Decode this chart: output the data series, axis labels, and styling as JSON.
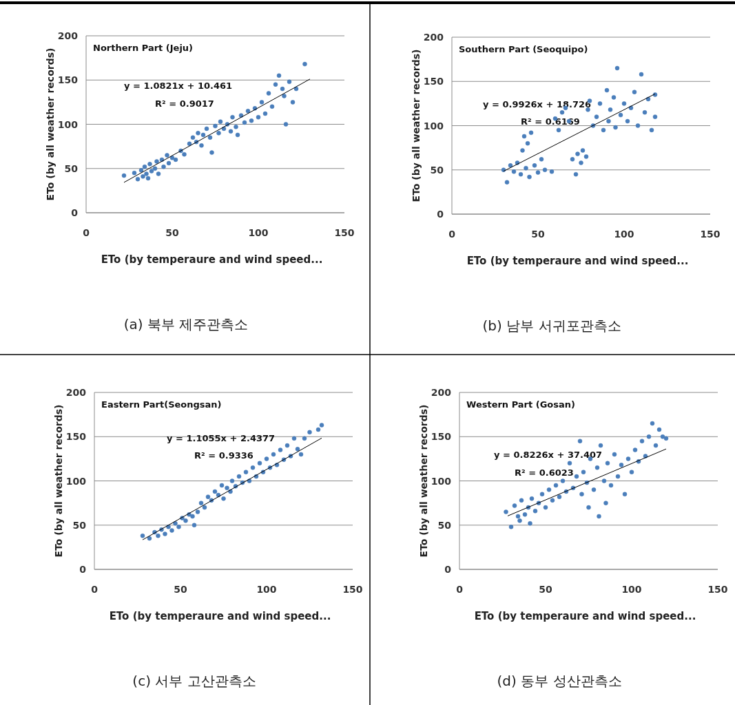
{
  "chart_data": [
    {
      "type": "scatter",
      "title": "Northern Part (Jeju)",
      "xlabel": "ETo (by temperaure and wind speed...",
      "ylabel": "ETo (by all  weather records)",
      "xlim": [
        0,
        150
      ],
      "ylim": [
        0,
        200
      ],
      "xticks": [
        0,
        50,
        100,
        150
      ],
      "yticks": [
        0,
        50,
        100,
        150,
        200
      ],
      "grid": "y",
      "marker": "circle",
      "annotations": [
        "y = 1.0821x + 10.461",
        "R² = 0.9017",
        "(a) 북부 제주관측소"
      ],
      "series": [
        {
          "color": "#4a7ebb",
          "x": [
            22,
            28,
            30,
            32,
            33,
            34,
            35,
            36,
            37,
            38,
            40,
            41,
            42,
            44,
            45,
            47,
            48,
            50,
            52,
            55,
            57,
            60,
            62,
            64,
            65,
            67,
            68,
            70,
            72,
            73,
            75,
            77,
            78,
            80,
            82,
            84,
            85,
            87,
            88,
            90,
            92,
            94,
            96,
            98,
            100,
            102,
            104,
            106,
            108,
            110,
            112,
            114,
            115,
            116,
            118,
            120,
            122,
            127
          ],
          "values": [
            42,
            45,
            38,
            48,
            41,
            52,
            44,
            39,
            55,
            47,
            50,
            58,
            44,
            60,
            52,
            65,
            56,
            62,
            60,
            70,
            66,
            78,
            85,
            80,
            90,
            76,
            88,
            95,
            85,
            68,
            98,
            90,
            103,
            95,
            100,
            92,
            108,
            97,
            88,
            110,
            102,
            115,
            104,
            118,
            108,
            125,
            112,
            135,
            120,
            145,
            155,
            140,
            132,
            100,
            148,
            125,
            140,
            168
          ]
        },
        {
          "type": "line",
          "marker": "none",
          "color": "#000000",
          "x": [
            22,
            130
          ],
          "values": [
            34.3,
            151.1
          ]
        }
      ]
    },
    {
      "type": "scatter",
      "title": "Southern Part (Seoquipo)",
      "xlabel": "ETo (by temperaure and wind speed...",
      "ylabel": "ETo (by all  weather records)",
      "xlim": [
        0,
        150
      ],
      "ylim": [
        0,
        200
      ],
      "xticks": [
        0,
        50,
        100,
        150
      ],
      "yticks": [
        0,
        50,
        100,
        150,
        200
      ],
      "grid": "y",
      "marker": "circle",
      "annotations": [
        "y = 0.9926x + 18.726",
        "R² = 0.6169",
        "(b) 남부 서귀포관측소"
      ],
      "series": [
        {
          "color": "#4a7ebb",
          "x": [
            30,
            32,
            34,
            36,
            38,
            40,
            41,
            42,
            43,
            44,
            45,
            46,
            48,
            50,
            52,
            54,
            58,
            60,
            62,
            64,
            66,
            68,
            70,
            72,
            73,
            75,
            76,
            78,
            79,
            80,
            82,
            84,
            86,
            88,
            90,
            91,
            92,
            94,
            95,
            96,
            98,
            100,
            102,
            104,
            106,
            108,
            110,
            112,
            114,
            116,
            118,
            118
          ],
          "values": [
            50,
            36,
            55,
            48,
            58,
            45,
            72,
            88,
            52,
            80,
            42,
            92,
            55,
            47,
            62,
            50,
            48,
            108,
            95,
            115,
            120,
            105,
            62,
            45,
            68,
            58,
            72,
            65,
            118,
            128,
            100,
            110,
            125,
            95,
            140,
            105,
            118,
            132,
            98,
            165,
            112,
            125,
            105,
            120,
            138,
            100,
            158,
            115,
            130,
            95,
            110,
            135
          ]
        },
        {
          "type": "line",
          "marker": "none",
          "color": "#000000",
          "x": [
            30,
            118
          ],
          "values": [
            48.5,
            135.9
          ]
        }
      ]
    },
    {
      "type": "scatter",
      "title": "Eastern Part(Seongsan)",
      "xlabel": "ETo (by temperaure and wind speed...",
      "ylabel": "ETo (by all  weather records)",
      "xlim": [
        0,
        150
      ],
      "ylim": [
        0,
        200
      ],
      "xticks": [
        0,
        50,
        100,
        150
      ],
      "yticks": [
        0,
        50,
        100,
        150,
        200
      ],
      "grid": "y",
      "marker": "circle",
      "annotations": [
        "y = 1.1055x + 2.4377",
        "R² = 0.9336",
        "(c) 서부 고산관측소"
      ],
      "series": [
        {
          "color": "#4a7ebb",
          "x": [
            28,
            32,
            35,
            37,
            39,
            41,
            43,
            45,
            47,
            49,
            51,
            53,
            55,
            57,
            58,
            60,
            62,
            64,
            66,
            68,
            70,
            72,
            74,
            75,
            77,
            79,
            80,
            82,
            84,
            86,
            88,
            90,
            92,
            94,
            96,
            98,
            100,
            102,
            104,
            106,
            108,
            110,
            112,
            114,
            116,
            118,
            120,
            122,
            125,
            130,
            132
          ],
          "values": [
            38,
            35,
            42,
            38,
            45,
            40,
            48,
            44,
            52,
            48,
            58,
            55,
            62,
            60,
            50,
            65,
            75,
            70,
            82,
            78,
            88,
            84,
            95,
            80,
            92,
            88,
            100,
            94,
            105,
            98,
            110,
            100,
            115,
            105,
            120,
            110,
            125,
            115,
            130,
            118,
            135,
            124,
            140,
            128,
            148,
            136,
            130,
            148,
            155,
            158,
            163
          ]
        },
        {
          "type": "line",
          "marker": "none",
          "color": "#000000",
          "x": [
            28,
            132
          ],
          "values": [
            33.4,
            148.4
          ]
        }
      ]
    },
    {
      "type": "scatter",
      "title": "Western Part (Gosan)",
      "xlabel": "ETo (by temperaure and wind speed...",
      "ylabel": "ETo (by all  weather records)",
      "xlim": [
        0,
        150
      ],
      "ylim": [
        0,
        200
      ],
      "xticks": [
        0,
        50,
        100,
        150
      ],
      "yticks": [
        0,
        50,
        100,
        150,
        200
      ],
      "grid": "y",
      "marker": "circle",
      "annotations": [
        "y = 0.8226x + 37.407",
        "R² = 0.6023",
        "(d) 동부 성산관측소"
      ],
      "series": [
        {
          "color": "#4a7ebb",
          "x": [
            27,
            30,
            32,
            34,
            35,
            36,
            38,
            40,
            41,
            42,
            44,
            46,
            48,
            50,
            52,
            54,
            56,
            58,
            60,
            62,
            64,
            66,
            68,
            70,
            71,
            72,
            74,
            75,
            76,
            78,
            80,
            81,
            82,
            84,
            85,
            86,
            88,
            90,
            92,
            94,
            96,
            98,
            100,
            102,
            104,
            106,
            108,
            110,
            112,
            114,
            116,
            118,
            120
          ],
          "values": [
            65,
            48,
            72,
            60,
            55,
            78,
            62,
            70,
            52,
            80,
            66,
            75,
            85,
            70,
            90,
            78,
            95,
            82,
            100,
            88,
            120,
            92,
            105,
            145,
            85,
            110,
            98,
            70,
            125,
            90,
            115,
            60,
            140,
            100,
            75,
            120,
            95,
            130,
            105,
            118,
            85,
            125,
            110,
            135,
            122,
            145,
            128,
            150,
            165,
            140,
            158,
            150,
            148
          ]
        },
        {
          "type": "line",
          "marker": "none",
          "color": "#000000",
          "x": [
            28,
            120
          ],
          "values": [
            60.4,
            136.1
          ]
        }
      ]
    }
  ]
}
